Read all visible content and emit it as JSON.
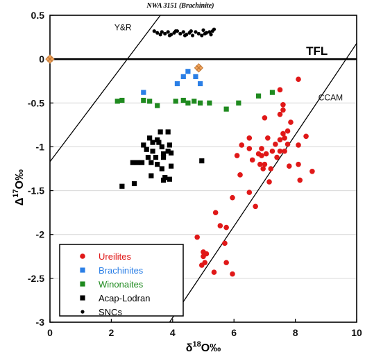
{
  "chart_data": {
    "type": "scatter",
    "title": "NWA 3151 (Brachinite)",
    "xlabel_base": "δ",
    "xlabel_sup": "18",
    "xlabel_rest": "O‰",
    "ylabel_base": "Δ",
    "ylabel_sup": "17",
    "ylabel_rest": "O‰",
    "xlim": [
      0,
      10
    ],
    "ylim": [
      -3,
      0.5
    ],
    "xticks": [
      0,
      2,
      4,
      6,
      8,
      10
    ],
    "yticks": [
      0.5,
      0,
      -0.5,
      -1,
      -1.5,
      -2,
      -2.5,
      -3
    ],
    "xtick_labels": [
      "0",
      "2",
      "4",
      "6",
      "8",
      "10"
    ],
    "ytick_labels": [
      "0.5",
      "0",
      "-0.5",
      "-1",
      "-1.5",
      "-2",
      "-2.5",
      "-3"
    ],
    "grid": "horizontal",
    "legend_placement": "bottom-left",
    "reference_lines": [
      {
        "name": "TFL",
        "points": [
          [
            0,
            0
          ],
          [
            10,
            0
          ]
        ],
        "color": "#000000"
      },
      {
        "name": "Y&R",
        "points": [
          [
            0,
            -1.17
          ],
          [
            3.6,
            0.5
          ]
        ],
        "color": "#000000"
      },
      {
        "name": "CCAM",
        "points": [
          [
            3.9,
            -3.0
          ],
          [
            10,
            0.18
          ]
        ],
        "color": "#000000"
      }
    ],
    "annotations": [
      {
        "text": "Y&R",
        "x": 2.1,
        "y": 0.33
      },
      {
        "text": "TFL",
        "x": 8.35,
        "y": 0.05
      },
      {
        "text": "CCAM",
        "x": 8.75,
        "y": -0.47
      }
    ],
    "highlight_points": {
      "color": "#f5a55c",
      "stroke": "#c07a3a",
      "points": [
        [
          0.0,
          0.0
        ],
        [
          4.85,
          -0.1
        ]
      ]
    },
    "series": [
      {
        "name": "Ureilites",
        "color": "#e01818",
        "marker": "circle",
        "points": [
          [
            8.1,
            -0.23
          ],
          [
            7.5,
            -0.35
          ],
          [
            7.6,
            -0.52
          ],
          [
            7.6,
            -0.58
          ],
          [
            7.5,
            -0.63
          ],
          [
            7.0,
            -0.67
          ],
          [
            7.85,
            -0.72
          ],
          [
            7.75,
            -0.82
          ],
          [
            7.6,
            -0.85
          ],
          [
            7.5,
            -0.92
          ],
          [
            7.65,
            -0.9
          ],
          [
            7.1,
            -0.9
          ],
          [
            6.5,
            -0.9
          ],
          [
            6.25,
            -0.98
          ],
          [
            6.5,
            -1.02
          ],
          [
            6.9,
            -1.02
          ],
          [
            7.35,
            -0.97
          ],
          [
            7.75,
            -0.97
          ],
          [
            8.1,
            -0.98
          ],
          [
            8.35,
            -0.88
          ],
          [
            7.25,
            -1.05
          ],
          [
            7.5,
            -1.05
          ],
          [
            7.65,
            -1.05
          ],
          [
            6.8,
            -1.08
          ],
          [
            6.9,
            -1.1
          ],
          [
            7.05,
            -1.08
          ],
          [
            7.4,
            -1.12
          ],
          [
            6.1,
            -1.1
          ],
          [
            6.6,
            -1.15
          ],
          [
            7.0,
            -1.2
          ],
          [
            7.8,
            -1.22
          ],
          [
            8.1,
            -1.2
          ],
          [
            7.2,
            -1.25
          ],
          [
            6.85,
            -1.2
          ],
          [
            6.95,
            -1.25
          ],
          [
            8.55,
            -1.28
          ],
          [
            6.2,
            -1.32
          ],
          [
            7.15,
            -1.4
          ],
          [
            8.15,
            -1.38
          ],
          [
            6.5,
            -1.52
          ],
          [
            5.95,
            -1.58
          ],
          [
            6.7,
            -1.68
          ],
          [
            5.4,
            -1.75
          ],
          [
            5.55,
            -1.9
          ],
          [
            5.75,
            -1.92
          ],
          [
            4.8,
            -2.03
          ],
          [
            5.7,
            -2.1
          ],
          [
            5.0,
            -2.2
          ],
          [
            5.1,
            -2.22
          ],
          [
            5.0,
            -2.25
          ],
          [
            5.05,
            -2.32
          ],
          [
            4.95,
            -2.35
          ],
          [
            5.75,
            -2.32
          ],
          [
            5.35,
            -2.43
          ],
          [
            5.95,
            -2.45
          ]
        ]
      },
      {
        "name": "Brachinites",
        "color": "#2b7fe6",
        "marker": "square",
        "points": [
          [
            3.05,
            -0.38
          ],
          [
            4.15,
            -0.28
          ],
          [
            4.35,
            -0.2
          ],
          [
            4.5,
            -0.14
          ],
          [
            4.75,
            -0.2
          ],
          [
            4.9,
            -0.28
          ]
        ]
      },
      {
        "name": "Winonaites",
        "color": "#1f8a1f",
        "marker": "square",
        "points": [
          [
            2.2,
            -0.48
          ],
          [
            3.05,
            -0.47
          ],
          [
            3.25,
            -0.48
          ],
          [
            3.5,
            -0.53
          ],
          [
            4.1,
            -0.48
          ],
          [
            4.35,
            -0.47
          ],
          [
            4.5,
            -0.5
          ],
          [
            4.7,
            -0.48
          ],
          [
            4.9,
            -0.5
          ],
          [
            5.2,
            -0.5
          ],
          [
            5.75,
            -0.57
          ],
          [
            6.15,
            -0.5
          ],
          [
            6.8,
            -0.42
          ],
          [
            7.25,
            -0.38
          ],
          [
            2.35,
            -0.47
          ]
        ]
      },
      {
        "name": "Acap-Lodran",
        "color": "#000000",
        "marker": "square",
        "points": [
          [
            3.6,
            -0.83
          ],
          [
            3.85,
            -0.83
          ],
          [
            3.25,
            -0.9
          ],
          [
            3.5,
            -0.92
          ],
          [
            3.35,
            -0.95
          ],
          [
            3.55,
            -0.95
          ],
          [
            3.05,
            -0.98
          ],
          [
            3.65,
            -1.0
          ],
          [
            3.9,
            -0.98
          ],
          [
            3.15,
            -1.03
          ],
          [
            3.35,
            -1.05
          ],
          [
            3.85,
            -1.05
          ],
          [
            3.7,
            -1.08
          ],
          [
            3.95,
            -1.07
          ],
          [
            3.2,
            -1.12
          ],
          [
            3.45,
            -1.12
          ],
          [
            3.7,
            -1.12
          ],
          [
            2.7,
            -1.18
          ],
          [
            2.85,
            -1.18
          ],
          [
            3.0,
            -1.18
          ],
          [
            3.3,
            -1.18
          ],
          [
            3.5,
            -1.2
          ],
          [
            3.65,
            -1.25
          ],
          [
            3.95,
            -1.22
          ],
          [
            3.3,
            -1.33
          ],
          [
            3.75,
            -1.35
          ],
          [
            3.9,
            -1.37
          ],
          [
            2.35,
            -1.45
          ],
          [
            2.75,
            -1.42
          ],
          [
            4.95,
            -1.16
          ],
          [
            3.7,
            -1.38
          ]
        ]
      },
      {
        "name": "SNCs",
        "color": "#000000",
        "marker": "dot",
        "points": [
          [
            3.4,
            0.32
          ],
          [
            3.5,
            0.3
          ],
          [
            3.65,
            0.31
          ],
          [
            3.75,
            0.29
          ],
          [
            3.85,
            0.31
          ],
          [
            3.95,
            0.28
          ],
          [
            4.05,
            0.3
          ],
          [
            4.15,
            0.32
          ],
          [
            4.25,
            0.29
          ],
          [
            4.35,
            0.31
          ],
          [
            4.45,
            0.28
          ],
          [
            4.55,
            0.3
          ],
          [
            4.65,
            0.27
          ],
          [
            4.75,
            0.31
          ],
          [
            4.85,
            0.29
          ],
          [
            5.0,
            0.33
          ],
          [
            5.1,
            0.3
          ],
          [
            5.2,
            0.31
          ],
          [
            5.3,
            0.32
          ],
          [
            5.35,
            0.34
          ],
          [
            3.9,
            0.27
          ],
          [
            4.4,
            0.27
          ],
          [
            4.1,
            0.32
          ],
          [
            5.05,
            0.29
          ],
          [
            4.6,
            0.32
          ],
          [
            3.6,
            0.28
          ],
          [
            4.95,
            0.27
          ],
          [
            5.25,
            0.28
          ]
        ]
      }
    ]
  }
}
